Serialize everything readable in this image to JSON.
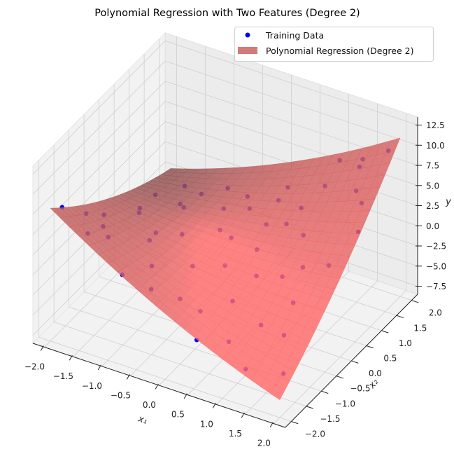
{
  "chart_data": {
    "type": "3d-scatter-surface",
    "title": "Polynomial Regression with Two Features (Degree 2)",
    "xlabel": "x₁",
    "ylabel": "x₂",
    "zlabel": "y",
    "xlim": [
      -2.2,
      2.2
    ],
    "ylim": [
      -2.2,
      2.2
    ],
    "zlim": [
      -8.5,
      13.5
    ],
    "x_ticks": [
      "−2.0",
      "−1.5",
      "−1.0",
      "−0.5",
      "0.0",
      "0.5",
      "1.0",
      "1.5",
      "2.0"
    ],
    "x_tick_values": [
      -2,
      -1.5,
      -1,
      -0.5,
      0,
      0.5,
      1,
      1.5,
      2
    ],
    "y_ticks": [
      "−2.0",
      "−1.5",
      "−1.0",
      "−0.5",
      "0.0",
      "0.5",
      "1.0",
      "1.5",
      "2.0"
    ],
    "y_tick_values": [
      -2,
      -1.5,
      -1,
      -0.5,
      0,
      0.5,
      1,
      1.5,
      2
    ],
    "z_ticks": [
      "−7.5",
      "−5.0",
      "−2.5",
      "0.0",
      "2.5",
      "5.0",
      "7.5",
      "10.0",
      "12.5"
    ],
    "z_tick_values": [
      -7.5,
      -5,
      -2.5,
      0,
      2.5,
      5,
      7.5,
      10,
      12.5
    ],
    "grid": true,
    "view": {
      "elevation": 30,
      "azimuth": -60
    },
    "legend": {
      "placement": "top-right",
      "entries": [
        {
          "label": "Training Data",
          "kind": "marker",
          "color": "#0000ff"
        },
        {
          "label": "Polynomial Regression (Degree 2)",
          "kind": "patch",
          "color": "#d27a7a"
        }
      ]
    },
    "scatter": {
      "name": "Training Data",
      "color": "#0000ff",
      "points": [
        [
          -1.9,
          -1.8,
          7.6
        ],
        [
          -1.5,
          -1.2,
          3.9
        ],
        [
          -1.2,
          -1.6,
          4.8
        ],
        [
          -0.8,
          -1.9,
          2.2
        ],
        [
          -1.7,
          0.4,
          -0.3
        ],
        [
          -1.3,
          1.1,
          -1.9
        ],
        [
          -0.5,
          0.9,
          0.6
        ],
        [
          -0.2,
          -0.7,
          0.2
        ],
        [
          0.3,
          -1.4,
          -1.6
        ],
        [
          0.7,
          -0.3,
          -0.4
        ],
        [
          1.1,
          0.5,
          2.6
        ],
        [
          1.6,
          1.3,
          6.3
        ],
        [
          1.9,
          1.8,
          10.1
        ],
        [
          1.4,
          1.9,
          7.5
        ],
        [
          0.9,
          1.6,
          4.1
        ],
        [
          0.2,
          1.7,
          1.9
        ],
        [
          -0.4,
          1.5,
          0.1
        ],
        [
          -0.9,
          1.8,
          -1.2
        ],
        [
          1.8,
          -1.5,
          -5.4
        ],
        [
          1.3,
          -1.8,
          -4.9
        ],
        [
          1.5,
          -0.6,
          -0.7
        ],
        [
          0.5,
          -1.9,
          -2.8
        ],
        [
          -1.8,
          -0.6,
          2.4
        ],
        [
          -1.0,
          -0.4,
          1.3
        ],
        [
          0.0,
          0.2,
          0.8
        ],
        [
          0.4,
          0.6,
          1.9
        ],
        [
          1.2,
          -1.1,
          -2.3
        ],
        [
          -0.6,
          -1.3,
          1.5
        ],
        [
          0.8,
          1.0,
          3.4
        ],
        [
          1.7,
          0.2,
          1.4
        ],
        [
          -1.4,
          -1.9,
          5.9
        ],
        [
          -1.9,
          1.3,
          -2.5
        ],
        [
          -1.6,
          1.7,
          -2.2
        ],
        [
          0.1,
          -0.2,
          -0.9
        ],
        [
          -0.3,
          0.4,
          0.3
        ],
        [
          0.6,
          -0.9,
          -1.5
        ],
        [
          1.0,
          1.9,
          6.4
        ],
        [
          -1.1,
          0.6,
          0.9
        ],
        [
          0.9,
          -1.6,
          -3.2
        ],
        [
          1.9,
          0.8,
          3.8
        ],
        [
          -0.7,
          -0.1,
          0.7
        ],
        [
          0.3,
          1.2,
          2.4
        ],
        [
          1.5,
          1.6,
          7.9
        ],
        [
          -1.5,
          0.0,
          1.1
        ],
        [
          0.0,
          -1.5,
          -0.4
        ],
        [
          1.3,
          0.1,
          0.6
        ],
        [
          -0.1,
          1.0,
          1.2
        ],
        [
          1.1,
          -0.2,
          0.1
        ],
        [
          -0.9,
          -0.8,
          2.1
        ],
        [
          0.5,
          0.1,
          0.9
        ],
        [
          -1.9,
          -1.0,
          3.8
        ],
        [
          1.8,
          1.1,
          6.0
        ],
        [
          -0.4,
          -1.7,
          0.6
        ],
        [
          0.7,
          0.7,
          2.3
        ],
        [
          -1.2,
          1.5,
          -1.5
        ],
        [
          1.6,
          -1.1,
          -2.6
        ]
      ]
    },
    "surface": {
      "name": "Polynomial Regression (Degree 2)",
      "color": "#ff0000",
      "domain_x": [
        -2,
        2
      ],
      "domain_y": [
        -2,
        2
      ],
      "terms": [
        "1",
        "x1",
        "x2",
        "x1^2",
        "x1*x2",
        "x2^2"
      ],
      "coefficients": [
        0.3,
        -0.125,
        0.925,
        0.3,
        1.725,
        0.3
      ]
    }
  }
}
